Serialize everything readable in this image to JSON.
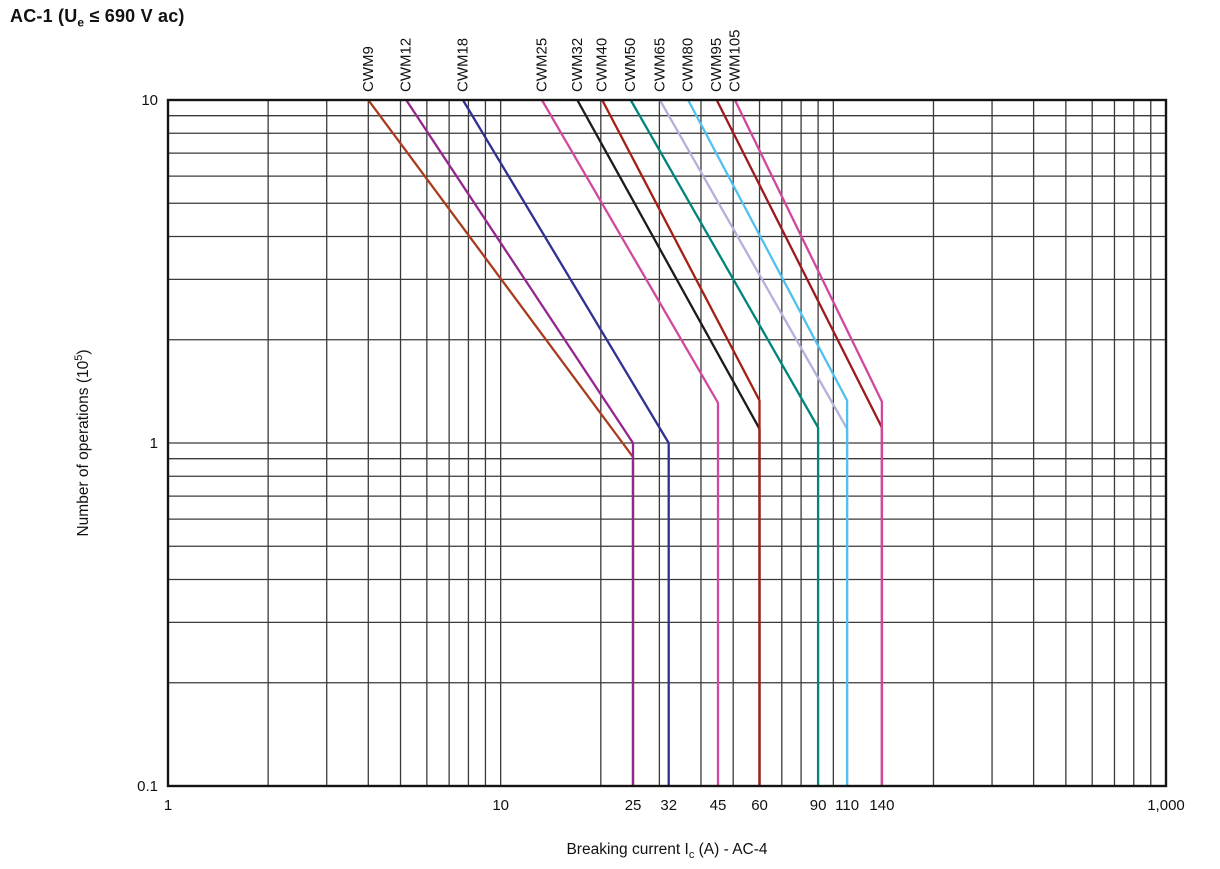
{
  "title": {
    "pre": "AC-1 (U",
    "sub": "e",
    "rest": " ≤ 690 V ac)"
  },
  "chart_data": {
    "type": "line",
    "title": "AC-1 (Ue ≤ 690 V ac)",
    "xlabel": "Breaking current Ic (A) - AC-4",
    "xlabel_parts": {
      "pre": "Breaking current I",
      "sub": "c",
      "post": " (A) - AC-4"
    },
    "ylabel": "Number of operations (10⁵)",
    "ylabel_parts": {
      "pre": "Number of operations (10",
      "sup": "5",
      "post": ")"
    },
    "x_scale": "log",
    "y_scale": "log",
    "xlim": [
      1,
      1000
    ],
    "ylim": [
      0.1,
      10
    ],
    "grid": "log major + minor, both axes",
    "legend_position": "labels rotated above top axis",
    "x_ticks": [
      {
        "value": 1,
        "label": "1"
      },
      {
        "value": 10,
        "label": "10"
      },
      {
        "value": 25,
        "label": "25"
      },
      {
        "value": 32,
        "label": "32"
      },
      {
        "value": 45,
        "label": "45"
      },
      {
        "value": 60,
        "label": "60"
      },
      {
        "value": 90,
        "label": "90"
      },
      {
        "value": 110,
        "label": "110"
      },
      {
        "value": 140,
        "label": "140"
      },
      {
        "value": 1000,
        "label": "1,000"
      }
    ],
    "y_ticks": [
      {
        "value": 10,
        "label": "10"
      },
      {
        "value": 1,
        "label": "1"
      },
      {
        "value": 0.1,
        "label": "0.1"
      }
    ],
    "series": [
      {
        "name": "CWM9",
        "color": "#AA3C1E",
        "breaking_current_A": 25,
        "points": [
          [
            4.0,
            10
          ],
          [
            25,
            0.91
          ],
          [
            25,
            0.1
          ]
        ]
      },
      {
        "name": "CWM12",
        "color": "#93278F",
        "breaking_current_A": 25,
        "points": [
          [
            5.2,
            10
          ],
          [
            25,
            1.0
          ],
          [
            25,
            0.1
          ]
        ]
      },
      {
        "name": "CWM18",
        "color": "#2E3192",
        "breaking_current_A": 32,
        "points": [
          [
            7.7,
            10
          ],
          [
            32,
            1.0
          ],
          [
            32,
            0.1
          ]
        ]
      },
      {
        "name": "CWM25",
        "color": "#D1499E",
        "breaking_current_A": 45,
        "points": [
          [
            13.3,
            10
          ],
          [
            45,
            1.31
          ],
          [
            45,
            0.1
          ]
        ]
      },
      {
        "name": "CWM32",
        "color": "#1B1B1B",
        "breaking_current_A": 60,
        "points": [
          [
            17.0,
            10
          ],
          [
            60,
            1.1
          ],
          [
            60,
            0.1
          ]
        ]
      },
      {
        "name": "CWM40",
        "color": "#A32013",
        "breaking_current_A": 60,
        "points": [
          [
            20.2,
            10
          ],
          [
            60,
            1.33
          ],
          [
            60,
            0.1
          ]
        ]
      },
      {
        "name": "CWM50",
        "color": "#00847C",
        "breaking_current_A": 90,
        "points": [
          [
            24.6,
            10
          ],
          [
            90,
            1.11
          ],
          [
            90,
            0.1
          ]
        ]
      },
      {
        "name": "CWM65",
        "color": "#B3B0DC",
        "breaking_current_A": 110,
        "points": [
          [
            30.1,
            10
          ],
          [
            110,
            1.1
          ],
          [
            110,
            0.1
          ]
        ]
      },
      {
        "name": "CWM80",
        "color": "#4FC1F0",
        "breaking_current_A": 110,
        "points": [
          [
            36.6,
            10
          ],
          [
            110,
            1.33
          ],
          [
            110,
            0.1
          ]
        ]
      },
      {
        "name": "CWM95",
        "color": "#9C1A1E",
        "breaking_current_A": 140,
        "points": [
          [
            44.6,
            10
          ],
          [
            140,
            1.11
          ],
          [
            140,
            0.1
          ]
        ]
      },
      {
        "name": "CWM105",
        "color": "#D1469E",
        "breaking_current_A": 140,
        "points": [
          [
            50.6,
            10
          ],
          [
            140,
            1.32
          ],
          [
            140,
            0.1
          ]
        ]
      }
    ]
  }
}
